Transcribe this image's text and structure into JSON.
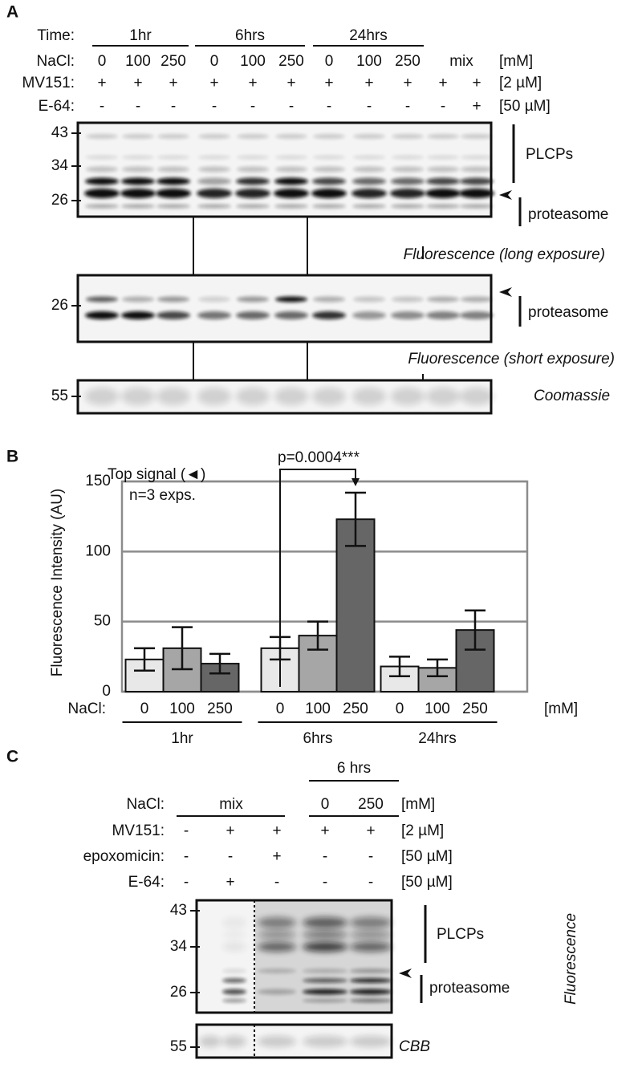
{
  "panel_a": {
    "letter": "A",
    "time": {
      "label": "Time:",
      "groups": [
        "1hr",
        "6hrs",
        "24hrs"
      ]
    },
    "nacl": {
      "label": "NaCl:",
      "values": [
        "0",
        "100",
        "250",
        "0",
        "100",
        "250",
        "0",
        "100",
        "250",
        "mix"
      ],
      "unit": "[mM]"
    },
    "mv151": {
      "label": "MV151:",
      "values": [
        "+",
        "+",
        "+",
        "+",
        "+",
        "+",
        "+",
        "+",
        "+",
        "+",
        "+"
      ],
      "unit": "[2 µM]"
    },
    "e64": {
      "label": "E-64:",
      "values": [
        "-",
        "-",
        "-",
        "-",
        "-",
        "-",
        "-",
        "-",
        "-",
        "-",
        "+"
      ],
      "unit": "[50 µM]"
    },
    "gel_long": {
      "markers": [
        "43",
        "34",
        "26"
      ],
      "labels": [
        "PLCPs",
        "proteasome"
      ],
      "caption": "Fluorescence (long exposure)"
    },
    "gel_short": {
      "markers": [
        "26"
      ],
      "labels": [
        "proteasome"
      ],
      "caption": "Fluorescence (short exposure)"
    },
    "gel_stain": {
      "markers": [
        "55"
      ],
      "caption": "Coomassie"
    }
  },
  "chart_data": {
    "type": "bar",
    "panel": "B",
    "ylabel": "Fluorescence Intensity (AU)",
    "x_label": "NaCl:",
    "x_unit": "[mM]",
    "groups": [
      "1hr",
      "6hrs",
      "24hrs"
    ],
    "series": [
      {
        "name": "0",
        "color": "#e8e8e8",
        "values": [
          23,
          31,
          18
        ],
        "errors": [
          8,
          8,
          7
        ]
      },
      {
        "name": "100",
        "color": "#a6a6a6",
        "values": [
          31,
          40,
          17
        ],
        "errors": [
          15,
          10,
          6
        ]
      },
      {
        "name": "250",
        "color": "#666666",
        "values": [
          20,
          123,
          44
        ],
        "errors": [
          7,
          19,
          14
        ]
      }
    ],
    "ylim": [
      0,
      150
    ],
    "yticks": [
      0,
      50,
      100,
      150
    ],
    "grid": true,
    "annotations": [
      "Top signal (◄)",
      "n=3 exps."
    ],
    "significance": "p=0.0004***"
  },
  "panel_c": {
    "letter": "C",
    "time": "6 hrs",
    "nacl": {
      "label": "NaCl:",
      "values": [
        "mix",
        "0",
        "250"
      ],
      "unit": "[mM]"
    },
    "mv151": {
      "label": "MV151:",
      "values": [
        "-",
        "+",
        "+",
        "+",
        "+"
      ],
      "unit": "[2 µM]"
    },
    "epoxomicin": {
      "label": "epoxomicin:",
      "values": [
        "-",
        "-",
        "+",
        "-",
        "-"
      ],
      "unit": "[50 µM]"
    },
    "e64": {
      "label": "E-64:",
      "values": [
        "-",
        "+",
        "-",
        "-",
        "-"
      ],
      "unit": "[50 µM]"
    },
    "gel": {
      "markers": [
        "43",
        "34",
        "26"
      ],
      "labels": [
        "PLCPs",
        "proteasome"
      ],
      "caption": "Fluorescence"
    },
    "stain": {
      "markers": [
        "55"
      ],
      "caption": "CBB"
    }
  }
}
